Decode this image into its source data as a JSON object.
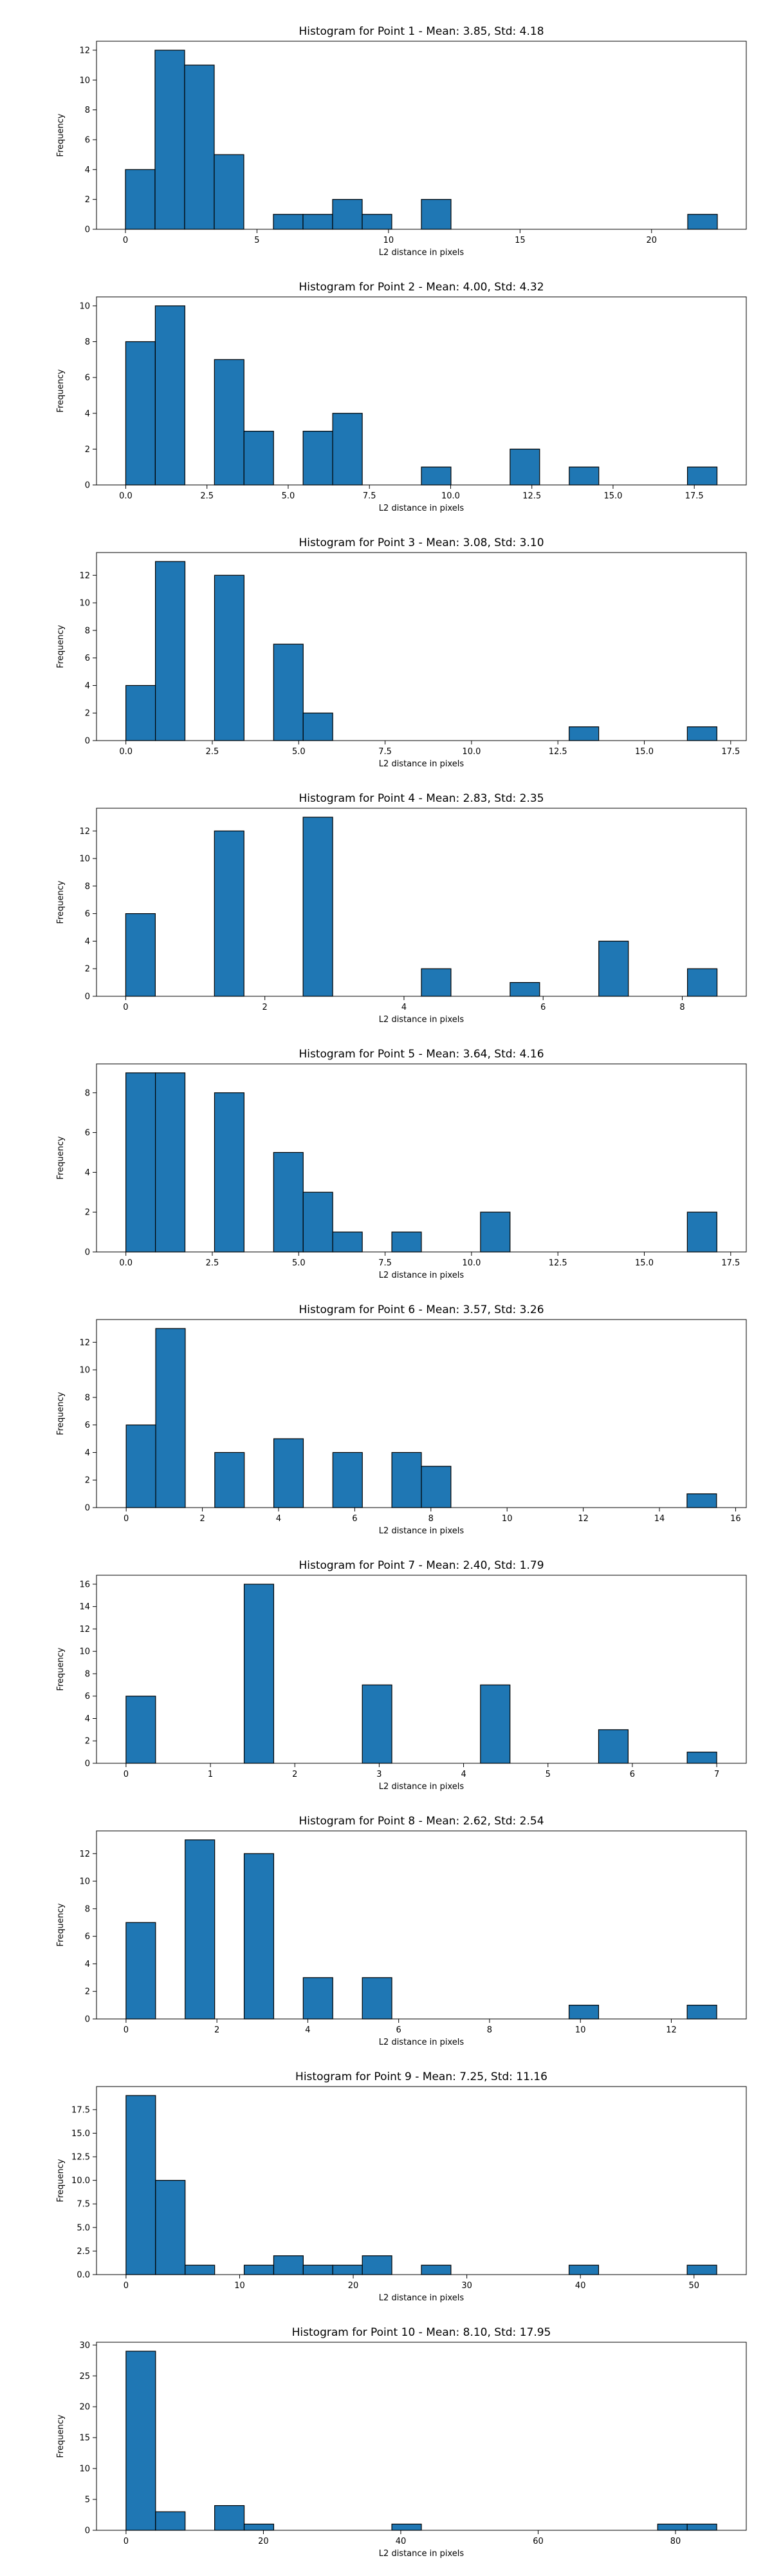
{
  "chart_data": [
    {
      "type": "bar",
      "title": "Histogram for Point 1 - Mean: 3.85, Std: 4.18",
      "xlabel": "L2 distance in pixels",
      "ylabel": "Frequency",
      "xlim": [
        -1.1,
        23.6
      ],
      "ylim": [
        0,
        12.6
      ],
      "xticks": [
        0,
        5,
        10,
        15,
        20
      ],
      "xtick_labels": [
        "0",
        "5",
        "10",
        "15",
        "20"
      ],
      "yticks": [
        0,
        2,
        4,
        6,
        8,
        10,
        12
      ],
      "ytick_labels": [
        "0",
        "2",
        "4",
        "6",
        "8",
        "10",
        "12"
      ],
      "bin_start": 0.0,
      "bin_width": 1.125,
      "counts": [
        4,
        12,
        11,
        5,
        0,
        1,
        1,
        2,
        1,
        0,
        2,
        0,
        0,
        0,
        0,
        0,
        0,
        0,
        0,
        1
      ]
    },
    {
      "type": "bar",
      "title": "Histogram for Point 2 - Mean: 4.00, Std: 4.32",
      "xlabel": "L2 distance in pixels",
      "ylabel": "Frequency",
      "xlim": [
        -0.9,
        19.1
      ],
      "ylim": [
        0,
        10.5
      ],
      "xticks": [
        0,
        2.5,
        5,
        7.5,
        10,
        12.5,
        15,
        17.5
      ],
      "xtick_labels": [
        "0.0",
        "2.5",
        "5.0",
        "7.5",
        "10.0",
        "12.5",
        "15.0",
        "17.5"
      ],
      "yticks": [
        0,
        2,
        4,
        6,
        8,
        10
      ],
      "ytick_labels": [
        "0",
        "2",
        "4",
        "6",
        "8",
        "10"
      ],
      "bin_start": 0.0,
      "bin_width": 0.91,
      "counts": [
        8,
        10,
        0,
        7,
        3,
        0,
        3,
        4,
        0,
        0,
        1,
        0,
        0,
        2,
        0,
        1,
        0,
        0,
        0,
        1
      ]
    },
    {
      "type": "bar",
      "title": "Histogram for Point 3 - Mean: 3.08, Std: 3.10",
      "xlabel": "L2 distance in pixels",
      "ylabel": "Frequency",
      "xlim": [
        -0.85,
        17.95
      ],
      "ylim": [
        0,
        13.65
      ],
      "xticks": [
        0,
        2.5,
        5,
        7.5,
        10,
        12.5,
        15,
        17.5
      ],
      "xtick_labels": [
        "0.0",
        "2.5",
        "5.0",
        "7.5",
        "10.0",
        "12.5",
        "15.0",
        "17.5"
      ],
      "yticks": [
        0,
        2,
        4,
        6,
        8,
        10,
        12
      ],
      "ytick_labels": [
        "0",
        "2",
        "4",
        "6",
        "8",
        "10",
        "12"
      ],
      "bin_start": 0.0,
      "bin_width": 0.855,
      "counts": [
        4,
        13,
        0,
        12,
        0,
        7,
        2,
        0,
        0,
        0,
        0,
        0,
        0,
        0,
        0,
        1,
        0,
        0,
        0,
        1
      ]
    },
    {
      "type": "bar",
      "title": "Histogram for Point 4 - Mean: 2.83, Std: 2.35",
      "xlabel": "L2 distance in pixels",
      "ylabel": "Frequency",
      "xlim": [
        -0.42,
        8.92
      ],
      "ylim": [
        0,
        13.65
      ],
      "xticks": [
        0,
        2,
        4,
        6,
        8
      ],
      "xtick_labels": [
        "0",
        "2",
        "4",
        "6",
        "8"
      ],
      "yticks": [
        0,
        2,
        4,
        6,
        8,
        10,
        12
      ],
      "ytick_labels": [
        "0",
        "2",
        "4",
        "6",
        "8",
        "10",
        "12"
      ],
      "bin_start": 0.0,
      "bin_width": 0.425,
      "counts": [
        6,
        0,
        0,
        12,
        0,
        0,
        13,
        0,
        0,
        0,
        2,
        0,
        0,
        1,
        0,
        0,
        4,
        0,
        0,
        2
      ]
    },
    {
      "type": "bar",
      "title": "Histogram for Point 5 - Mean: 3.64, Std: 4.16",
      "xlabel": "L2 distance in pixels",
      "ylabel": "Frequency",
      "xlim": [
        -0.85,
        17.95
      ],
      "ylim": [
        0,
        9.45
      ],
      "xticks": [
        0,
        2.5,
        5,
        7.5,
        10,
        12.5,
        15,
        17.5
      ],
      "xtick_labels": [
        "0.0",
        "2.5",
        "5.0",
        "7.5",
        "10.0",
        "12.5",
        "15.0",
        "17.5"
      ],
      "yticks": [
        0,
        2,
        4,
        6,
        8
      ],
      "ytick_labels": [
        "0",
        "2",
        "4",
        "6",
        "8"
      ],
      "bin_start": 0.0,
      "bin_width": 0.855,
      "counts": [
        9,
        9,
        0,
        8,
        0,
        5,
        3,
        1,
        0,
        1,
        0,
        0,
        2,
        0,
        0,
        0,
        0,
        0,
        0,
        2
      ]
    },
    {
      "type": "bar",
      "title": "Histogram for Point 6 - Mean: 3.57, Std: 3.26",
      "xlabel": "L2 distance in pixels",
      "ylabel": "Frequency",
      "xlim": [
        -0.78,
        16.28
      ],
      "ylim": [
        0,
        13.65
      ],
      "xticks": [
        0,
        2,
        4,
        6,
        8,
        10,
        12,
        14,
        16
      ],
      "xtick_labels": [
        "0",
        "2",
        "4",
        "6",
        "8",
        "10",
        "12",
        "14",
        "16"
      ],
      "yticks": [
        0,
        2,
        4,
        6,
        8,
        10,
        12
      ],
      "ytick_labels": [
        "0",
        "2",
        "4",
        "6",
        "8",
        "10",
        "12"
      ],
      "bin_start": 0.0,
      "bin_width": 0.775,
      "counts": [
        6,
        13,
        0,
        4,
        0,
        5,
        0,
        4,
        0,
        4,
        3,
        0,
        0,
        0,
        0,
        0,
        0,
        0,
        0,
        1
      ]
    },
    {
      "type": "bar",
      "title": "Histogram for Point 7 - Mean: 2.40, Std: 1.79",
      "xlabel": "L2 distance in pixels",
      "ylabel": "Frequency",
      "xlim": [
        -0.35,
        7.35
      ],
      "ylim": [
        0,
        16.8
      ],
      "xticks": [
        0,
        1,
        2,
        3,
        4,
        5,
        6,
        7
      ],
      "xtick_labels": [
        "0",
        "1",
        "2",
        "3",
        "4",
        "5",
        "6",
        "7"
      ],
      "yticks": [
        0,
        2,
        4,
        6,
        8,
        10,
        12,
        14,
        16
      ],
      "ytick_labels": [
        "0",
        "2",
        "4",
        "6",
        "8",
        "10",
        "12",
        "14",
        "16"
      ],
      "bin_start": 0.0,
      "bin_width": 0.35,
      "counts": [
        6,
        0,
        0,
        0,
        16,
        0,
        0,
        0,
        7,
        0,
        0,
        0,
        7,
        0,
        0,
        0,
        3,
        0,
        0,
        1
      ]
    },
    {
      "type": "bar",
      "title": "Histogram for Point 8 - Mean: 2.62, Std: 2.54",
      "xlabel": "L2 distance in pixels",
      "ylabel": "Frequency",
      "xlim": [
        -0.65,
        13.65
      ],
      "ylim": [
        0,
        13.65
      ],
      "xticks": [
        0,
        2,
        4,
        6,
        8,
        10,
        12
      ],
      "xtick_labels": [
        "0",
        "2",
        "4",
        "6",
        "8",
        "10",
        "12"
      ],
      "yticks": [
        0,
        2,
        4,
        6,
        8,
        10,
        12
      ],
      "ytick_labels": [
        "0",
        "2",
        "4",
        "6",
        "8",
        "10",
        "12"
      ],
      "bin_start": 0.0,
      "bin_width": 0.65,
      "counts": [
        7,
        0,
        13,
        0,
        12,
        0,
        3,
        0,
        3,
        0,
        0,
        0,
        0,
        0,
        0,
        1,
        0,
        0,
        0,
        1
      ]
    },
    {
      "type": "bar",
      "title": "Histogram for Point 9 - Mean: 7.25, Std: 11.16",
      "xlabel": "L2 distance in pixels",
      "ylabel": "Frequency",
      "xlim": [
        -2.6,
        54.6
      ],
      "ylim": [
        0,
        19.95
      ],
      "xticks": [
        0,
        10,
        20,
        30,
        40,
        50
      ],
      "xtick_labels": [
        "0",
        "10",
        "20",
        "30",
        "40",
        "50"
      ],
      "yticks": [
        0,
        2.5,
        5,
        7.5,
        10,
        12.5,
        15,
        17.5
      ],
      "ytick_labels": [
        "0.0",
        "2.5",
        "5.0",
        "7.5",
        "10.0",
        "12.5",
        "15.0",
        "17.5"
      ],
      "bin_start": 0.0,
      "bin_width": 2.6,
      "counts": [
        19,
        10,
        1,
        0,
        1,
        2,
        1,
        1,
        2,
        0,
        1,
        0,
        0,
        0,
        0,
        1,
        0,
        0,
        0,
        1
      ]
    },
    {
      "type": "bar",
      "title": "Histogram for Point 10 - Mean: 8.10, Std: 17.95",
      "xlabel": "L2 distance in pixels",
      "ylabel": "Frequency",
      "xlim": [
        -4.3,
        90.3
      ],
      "ylim": [
        0,
        30.45
      ],
      "xticks": [
        0,
        20,
        40,
        60,
        80
      ],
      "xtick_labels": [
        "0",
        "20",
        "40",
        "60",
        "80"
      ],
      "yticks": [
        0,
        5,
        10,
        15,
        20,
        25,
        30
      ],
      "ytick_labels": [
        "0",
        "5",
        "10",
        "15",
        "20",
        "25",
        "30"
      ],
      "bin_start": 0.0,
      "bin_width": 4.3,
      "counts": [
        29,
        3,
        0,
        4,
        1,
        0,
        0,
        0,
        0,
        1,
        0,
        0,
        0,
        0,
        0,
        0,
        0,
        0,
        1,
        1
      ]
    }
  ]
}
